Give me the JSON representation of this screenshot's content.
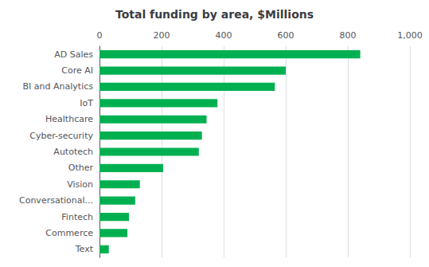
{
  "chart_data": {
    "type": "bar",
    "orientation": "horizontal",
    "title": "Total funding by area, $Millions",
    "categories": [
      "Text",
      "Commerce",
      "Fintech",
      "Conversational...",
      "Vision",
      "Other",
      "Autotech",
      "Cyber-security",
      "Healthcare",
      "IoT",
      "BI and Analytics",
      "Core AI",
      "AD Sales"
    ],
    "values": [
      30,
      90,
      95,
      115,
      130,
      205,
      320,
      330,
      345,
      380,
      565,
      600,
      840
    ],
    "color": "#00b050",
    "xlim": [
      0,
      1000
    ],
    "xticks": [
      0,
      200,
      400,
      600,
      800,
      1000
    ],
    "grid": true
  }
}
